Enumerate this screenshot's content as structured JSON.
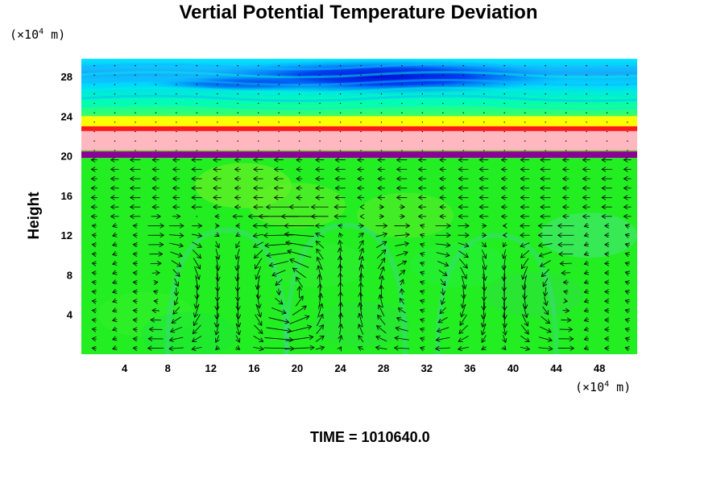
{
  "chart_data": {
    "type": "heatmap",
    "title": "Vertial Potential Temperature Deviation",
    "ylabel": "Height",
    "xlabel": "",
    "x_unit": {
      "prefix": "(×10",
      "exp": "4",
      "suffix": " m)"
    },
    "y_unit": {
      "prefix": "(×10",
      "exp": "4",
      "suffix": " m)"
    },
    "xlim": [
      0,
      51.5
    ],
    "ylim": [
      0,
      29.8
    ],
    "x_ticks": [
      4,
      8,
      12,
      16,
      20,
      24,
      28,
      32,
      36,
      40,
      44,
      48
    ],
    "y_ticks": [
      4,
      8,
      12,
      16,
      20,
      24,
      28
    ],
    "overlay": "wind vectors (arrows)",
    "colormap": [
      "#0000d0",
      "#0070ff",
      "#00e0ff",
      "#00ff80",
      "#22ff22",
      "#90ff00",
      "#ffff00",
      "#ff8000",
      "#ff0000",
      "#ffb8c0",
      "#9000a0"
    ],
    "field_bands": [
      {
        "y_from": 0,
        "y_to": 19.8,
        "level": "near zero",
        "color": "#22ee22"
      },
      {
        "y_from": 19.8,
        "y_to": 20.5,
        "level": "strong negative layer",
        "color": "#8b0097"
      },
      {
        "y_from": 20.5,
        "y_to": 22.5,
        "level": "strong positive layer",
        "color": "#ffb8c0"
      },
      {
        "y_from": 22.5,
        "y_to": 23.0,
        "level": "positive",
        "color": "#ff1a1a"
      },
      {
        "y_from": 23.0,
        "y_to": 24.0,
        "level": "weak positive",
        "color": "#ffff00"
      },
      {
        "y_from": 24.0,
        "y_to": 29.8,
        "level": "negative",
        "color": "#00d8ff"
      }
    ],
    "circulation_cells": [
      {
        "x_center": 13.5,
        "y_top": 12.5
      },
      {
        "x_center": 24.5,
        "y_top": 13.0
      },
      {
        "x_center": 38.5,
        "y_top": 12.0
      }
    ]
  },
  "footer": {
    "time_label": "TIME = 1010640.0"
  }
}
